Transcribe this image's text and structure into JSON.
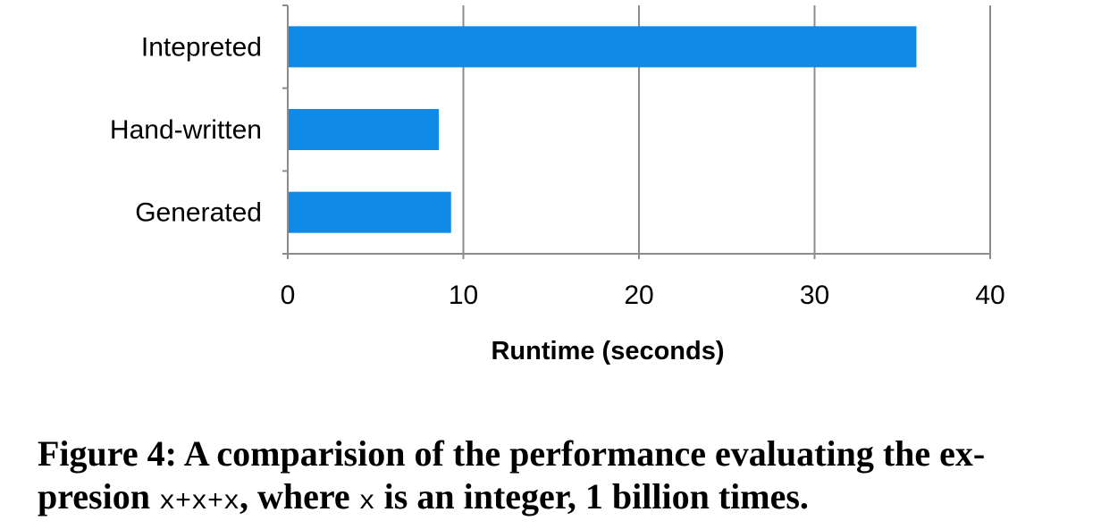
{
  "chart_data": {
    "type": "bar",
    "orientation": "horizontal",
    "categories": [
      "Intepreted",
      "Hand-written",
      "Generated"
    ],
    "values": [
      35.8,
      8.6,
      9.3
    ],
    "xlabel": "Runtime (seconds)",
    "ylabel": "",
    "xlim": [
      0,
      40
    ],
    "xticks": [
      0,
      10,
      20,
      30,
      40
    ],
    "grid": "vertical",
    "bar_color": "#0f8ae6",
    "grid_color": "#8c8c8c"
  },
  "caption": {
    "prefix": "Figure 4: A comparision of the performance evaluating the ex-",
    "line2_start": "presion ",
    "code1": "x+x+x",
    "middle": ", where ",
    "code2": "x",
    "end": " is an integer, 1 billion times."
  }
}
